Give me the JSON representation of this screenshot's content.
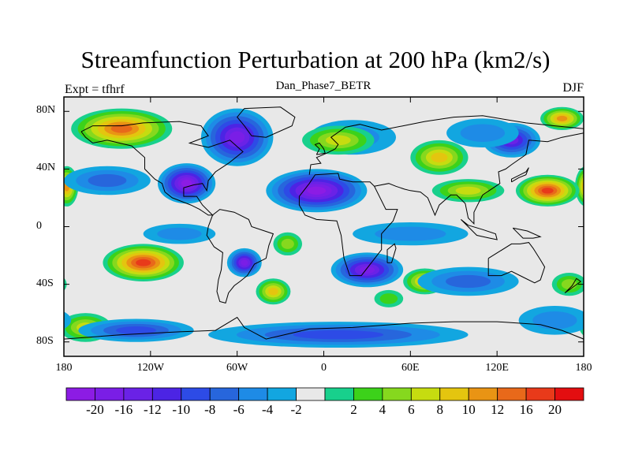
{
  "title": "Streamfunction Perturbation at 200 hPa (km2/s)",
  "left_string": "Expt = tfhrf",
  "center_string": "Dan_Phase7_BETR",
  "right_string": "DJF",
  "map": {
    "projection": "cylindrical equidistant",
    "lon_range": [
      -180,
      180
    ],
    "lat_range": [
      -90,
      90
    ],
    "background_color": "#e8e8e8"
  },
  "y_ticks": [
    {
      "label": "80N",
      "lat": 80
    },
    {
      "label": "40N",
      "lat": 40
    },
    {
      "label": "0",
      "lat": 0
    },
    {
      "label": "40S",
      "lat": -40
    },
    {
      "label": "80S",
      "lat": -80
    }
  ],
  "x_ticks": [
    {
      "label": "180",
      "lon": -180
    },
    {
      "label": "120W",
      "lon": -120
    },
    {
      "label": "60W",
      "lon": -60
    },
    {
      "label": "0",
      "lon": 0
    },
    {
      "label": "60E",
      "lon": 60
    },
    {
      "label": "120E",
      "lon": 120
    },
    {
      "label": "180",
      "lon": 180
    }
  ],
  "colorbar": {
    "colors": [
      "#8c1ce4",
      "#7a1ee6",
      "#6a22e6",
      "#4c24e4",
      "#2d4be6",
      "#2766dc",
      "#1e8be6",
      "#12a6e0",
      "#e8e8e8",
      "#18d08c",
      "#3cd21a",
      "#86d81e",
      "#c6dc10",
      "#e4c50f",
      "#e99414",
      "#e8691a",
      "#e83a1a",
      "#e30e10"
    ],
    "labels": [
      "-20",
      "-16",
      "-12",
      "-10",
      "-8",
      "-6",
      "-4",
      "-2",
      "2",
      "4",
      "6",
      "8",
      "10",
      "12",
      "16",
      "20"
    ]
  },
  "anomalies": [
    {
      "lon": -140,
      "lat": 68,
      "value": 16,
      "sx": 35,
      "sy": 14
    },
    {
      "lon": -178,
      "lat": 28,
      "value": 14,
      "sx": 8,
      "sy": 14
    },
    {
      "lon": -150,
      "lat": 32,
      "value": -6,
      "sx": 30,
      "sy": 10
    },
    {
      "lon": -95,
      "lat": 30,
      "value": -20,
      "sx": 20,
      "sy": 14
    },
    {
      "lon": -60,
      "lat": 62,
      "value": -18,
      "sx": 25,
      "sy": 20
    },
    {
      "lon": -5,
      "lat": 25,
      "value": -20,
      "sx": 35,
      "sy": 15
    },
    {
      "lon": 20,
      "lat": 62,
      "value": -4,
      "sx": 30,
      "sy": 12
    },
    {
      "lon": 10,
      "lat": 60,
      "value": 8,
      "sx": 25,
      "sy": 10
    },
    {
      "lon": 80,
      "lat": 48,
      "value": 10,
      "sx": 20,
      "sy": 12
    },
    {
      "lon": 155,
      "lat": 25,
      "value": 20,
      "sx": 22,
      "sy": 11
    },
    {
      "lon": 100,
      "lat": 25,
      "value": 8,
      "sx": 25,
      "sy": 8
    },
    {
      "lon": 130,
      "lat": 60,
      "value": -12,
      "sx": 20,
      "sy": 12
    },
    {
      "lon": 165,
      "lat": 75,
      "value": 14,
      "sx": 15,
      "sy": 8
    },
    {
      "lon": 110,
      "lat": 65,
      "value": -4,
      "sx": 25,
      "sy": 10
    },
    {
      "lon": -125,
      "lat": -25,
      "value": 20,
      "sx": 28,
      "sy": 13
    },
    {
      "lon": -165,
      "lat": -70,
      "value": 8,
      "sx": 18,
      "sy": 10
    },
    {
      "lon": -55,
      "lat": -25,
      "value": -18,
      "sx": 12,
      "sy": 10
    },
    {
      "lon": -35,
      "lat": -45,
      "value": 10,
      "sx": 12,
      "sy": 9
    },
    {
      "lon": -25,
      "lat": -12,
      "value": 6,
      "sx": 10,
      "sy": 8
    },
    {
      "lon": 30,
      "lat": -30,
      "value": -18,
      "sx": 25,
      "sy": 12
    },
    {
      "lon": 70,
      "lat": -38,
      "value": 10,
      "sx": 15,
      "sy": 9
    },
    {
      "lon": 100,
      "lat": -38,
      "value": -6,
      "sx": 35,
      "sy": 10
    },
    {
      "lon": 45,
      "lat": -50,
      "value": 4,
      "sx": 10,
      "sy": 6
    },
    {
      "lon": 10,
      "lat": -75,
      "value": -8,
      "sx": 90,
      "sy": 9
    },
    {
      "lon": -130,
      "lat": -72,
      "value": -8,
      "sx": 40,
      "sy": 8
    },
    {
      "lon": 160,
      "lat": -65,
      "value": -5,
      "sx": 25,
      "sy": 10
    },
    {
      "lon": 170,
      "lat": -40,
      "value": 6,
      "sx": 12,
      "sy": 8
    },
    {
      "lon": -100,
      "lat": -5,
      "value": -4,
      "sx": 25,
      "sy": 7
    },
    {
      "lon": 60,
      "lat": -5,
      "value": -4,
      "sx": 40,
      "sy": 8
    }
  ]
}
